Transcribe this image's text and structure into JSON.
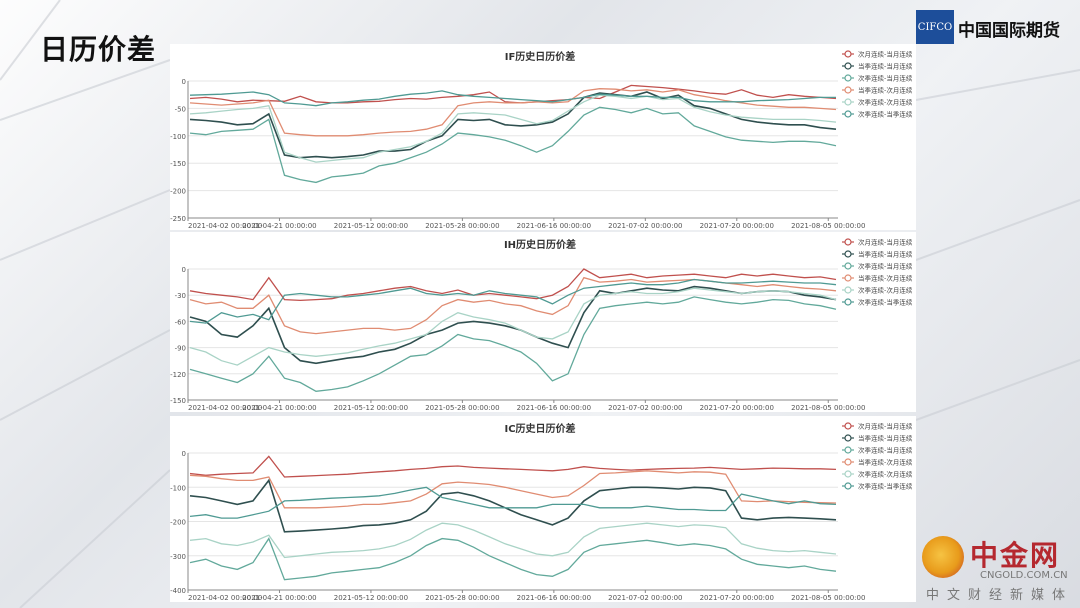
{
  "page": {
    "title": "日历价差"
  },
  "logo": {
    "mark": "CIFCO",
    "name": "中国国际期货"
  },
  "watermark": {
    "main": "中金网",
    "domain": "CNGOLD.COM.CN",
    "sub": "中文财经新媒体"
  },
  "colors": {
    "s1": "#c0504d",
    "s2": "#2f4f4f",
    "s3": "#62a99b",
    "s4": "#e08c72",
    "s5": "#a9d3c6",
    "s6": "#4f9a93"
  },
  "chart_data": [
    {
      "type": "line",
      "title": "IF历史日历价差",
      "ylim": [
        -250,
        0
      ],
      "yticks": [
        0,
        -50,
        -100,
        -150,
        -200,
        -250
      ],
      "xticks": [
        "2021-04-02 00:00:00",
        "2021-04-21 00:00:00",
        "2021-05-12 00:00:00",
        "2021-05-28 00:00:00",
        "2021-06-16 00:00:00",
        "2021-07-02 00:00:00",
        "2021-07-20 00:00:00",
        "2021-08-05 00:00:00"
      ],
      "legend": "top-right",
      "series": [
        {
          "name": "次月连续-当月连续",
          "values": [
            -32,
            -30,
            -33,
            -38,
            -35,
            -36,
            -37,
            -28,
            -38,
            -40,
            -40,
            -38,
            -37,
            -34,
            -32,
            -33,
            -30,
            -28,
            -25,
            -20,
            -38,
            -40,
            -38,
            -36,
            -34,
            -30,
            -32,
            -20,
            -8,
            -10,
            -12,
            -15,
            -18,
            -22,
            -24,
            -16,
            -26,
            -30,
            -25,
            -28,
            -30,
            -32
          ]
        },
        {
          "name": "当季连续-当月连续",
          "values": [
            -70,
            -72,
            -75,
            -80,
            -78,
            -60,
            -135,
            -140,
            -138,
            -140,
            -138,
            -135,
            -128,
            -128,
            -125,
            -110,
            -100,
            -70,
            -72,
            -70,
            -80,
            -82,
            -80,
            -75,
            -60,
            -30,
            -22,
            -25,
            -28,
            -20,
            -32,
            -26,
            -45,
            -50,
            -60,
            -70,
            -75,
            -78,
            -80,
            -80,
            -85,
            -88
          ]
        },
        {
          "name": "次季连续-当月连续",
          "values": [
            -95,
            -98,
            -92,
            -90,
            -88,
            -70,
            -172,
            -180,
            -185,
            -175,
            -172,
            -168,
            -155,
            -150,
            -140,
            -130,
            -115,
            -95,
            -98,
            -102,
            -108,
            -118,
            -130,
            -118,
            -92,
            -62,
            -48,
            -52,
            -58,
            -50,
            -60,
            -58,
            -82,
            -92,
            -102,
            -108,
            -110,
            -112,
            -110,
            -110,
            -112,
            -118
          ]
        },
        {
          "name": "当季连续-次月连续",
          "values": [
            -40,
            -42,
            -44,
            -42,
            -40,
            -35,
            -95,
            -98,
            -100,
            -100,
            -100,
            -98,
            -95,
            -93,
            -92,
            -88,
            -80,
            -45,
            -40,
            -38,
            -40,
            -40,
            -38,
            -40,
            -38,
            -18,
            -14,
            -15,
            -18,
            -16,
            -20,
            -16,
            -25,
            -30,
            -36,
            -40,
            -44,
            -46,
            -48,
            -48,
            -50,
            -52
          ]
        },
        {
          "name": "次季连续-次月连续",
          "values": [
            -60,
            -58,
            -55,
            -52,
            -50,
            -45,
            -130,
            -140,
            -148,
            -145,
            -142,
            -140,
            -130,
            -125,
            -120,
            -110,
            -95,
            -60,
            -58,
            -60,
            -62,
            -70,
            -78,
            -72,
            -55,
            -38,
            -26,
            -28,
            -32,
            -28,
            -34,
            -32,
            -48,
            -56,
            -62,
            -66,
            -68,
            -70,
            -70,
            -70,
            -72,
            -75
          ]
        },
        {
          "name": "次季连续-当季连续",
          "values": [
            -26,
            -25,
            -24,
            -22,
            -20,
            -25,
            -40,
            -42,
            -45,
            -40,
            -38,
            -35,
            -33,
            -28,
            -24,
            -22,
            -18,
            -25,
            -28,
            -30,
            -32,
            -34,
            -36,
            -38,
            -34,
            -30,
            -24,
            -26,
            -28,
            -28,
            -30,
            -30,
            -36,
            -38,
            -38,
            -38,
            -36,
            -35,
            -34,
            -32,
            -30,
            -30
          ]
        }
      ]
    },
    {
      "type": "line",
      "title": "IH历史日历价差",
      "ylim": [
        -150,
        0
      ],
      "yticks": [
        0,
        -30,
        -60,
        -90,
        -120,
        -150
      ],
      "xticks": [
        "2021-04-02 00:00:00",
        "2021-04-21 00:00:00",
        "2021-05-12 00:00:00",
        "2021-05-28 00:00:00",
        "2021-06-16 00:00:00",
        "2021-07-02 00:00:00",
        "2021-07-20 00:00:00",
        "2021-08-05 00:00:00"
      ],
      "legend": "top-right",
      "series": [
        {
          "name": "次月连续-当月连续",
          "values": [
            -25,
            -28,
            -30,
            -32,
            -35,
            -10,
            -35,
            -36,
            -35,
            -34,
            -30,
            -28,
            -25,
            -22,
            -20,
            -25,
            -28,
            -24,
            -30,
            -28,
            -30,
            -32,
            -34,
            -30,
            -20,
            0,
            -10,
            -8,
            -6,
            -10,
            -8,
            -7,
            -6,
            -8,
            -10,
            -6,
            -8,
            -6,
            -8,
            -10,
            -9,
            -12
          ]
        },
        {
          "name": "当季连续-当月连续",
          "values": [
            -55,
            -60,
            -75,
            -78,
            -65,
            -45,
            -90,
            -105,
            -108,
            -105,
            -102,
            -100,
            -95,
            -92,
            -85,
            -75,
            -70,
            -62,
            -60,
            -62,
            -65,
            -70,
            -78,
            -85,
            -90,
            -50,
            -25,
            -28,
            -25,
            -22,
            -24,
            -25,
            -20,
            -22,
            -25,
            -28,
            -26,
            -25,
            -26,
            -30,
            -32,
            -35
          ]
        },
        {
          "name": "次季连续-当月连续",
          "values": [
            -115,
            -120,
            -125,
            -130,
            -120,
            -100,
            -125,
            -130,
            -140,
            -138,
            -135,
            -128,
            -120,
            -110,
            -100,
            -98,
            -88,
            -75,
            -80,
            -82,
            -88,
            -95,
            -108,
            -128,
            -120,
            -75,
            -45,
            -42,
            -40,
            -38,
            -40,
            -38,
            -32,
            -35,
            -38,
            -40,
            -38,
            -35,
            -36,
            -40,
            -42,
            -46
          ]
        },
        {
          "name": "当季连续-次月连续",
          "values": [
            -35,
            -40,
            -38,
            -45,
            -45,
            -30,
            -65,
            -72,
            -74,
            -72,
            -70,
            -68,
            -68,
            -70,
            -68,
            -58,
            -42,
            -35,
            -38,
            -36,
            -40,
            -42,
            -48,
            -52,
            -42,
            -10,
            -15,
            -14,
            -12,
            -15,
            -14,
            -13,
            -12,
            -14,
            -16,
            -18,
            -20,
            -18,
            -20,
            -22,
            -23,
            -25
          ]
        },
        {
          "name": "次季连续-次月连续",
          "values": [
            -90,
            -95,
            -105,
            -110,
            -100,
            -90,
            -95,
            -98,
            -100,
            -98,
            -96,
            -92,
            -88,
            -85,
            -80,
            -75,
            -60,
            -50,
            -55,
            -58,
            -62,
            -70,
            -78,
            -80,
            -72,
            -40,
            -30,
            -28,
            -26,
            -28,
            -28,
            -26,
            -22,
            -24,
            -26,
            -28,
            -26,
            -25,
            -26,
            -28,
            -30,
            -35
          ]
        },
        {
          "name": "次季连续-当季连续",
          "values": [
            -60,
            -62,
            -50,
            -55,
            -52,
            -58,
            -30,
            -28,
            -30,
            -32,
            -32,
            -30,
            -28,
            -25,
            -22,
            -28,
            -30,
            -28,
            -30,
            -25,
            -28,
            -30,
            -32,
            -40,
            -30,
            -22,
            -20,
            -18,
            -16,
            -18,
            -18,
            -16,
            -12,
            -14,
            -16,
            -16,
            -15,
            -14,
            -15,
            -16,
            -16,
            -18
          ]
        }
      ]
    },
    {
      "type": "line",
      "title": "IC历史日历价差",
      "ylim": [
        -400,
        0
      ],
      "yticks": [
        0,
        -100,
        -200,
        -300,
        -400
      ],
      "xticks": [
        "2021-04-02 00:00:00",
        "2021-04-21 00:00:00",
        "2021-05-12 00:00:00",
        "2021-05-28 00:00:00",
        "2021-06-16 00:00:00",
        "2021-07-02 00:00:00",
        "2021-07-20 00:00:00",
        "2021-08-05 00:00:00"
      ],
      "legend": "top-right",
      "series": [
        {
          "name": "次月连续-当月连续",
          "values": [
            -60,
            -65,
            -62,
            -60,
            -58,
            -10,
            -70,
            -68,
            -66,
            -64,
            -62,
            -58,
            -55,
            -52,
            -48,
            -45,
            -40,
            -38,
            -42,
            -44,
            -46,
            -48,
            -50,
            -52,
            -48,
            -40,
            -45,
            -48,
            -50,
            -48,
            -46,
            -45,
            -44,
            -42,
            -45,
            -48,
            -46,
            -44,
            -45,
            -46,
            -46,
            -48
          ]
        },
        {
          "name": "当季连续-当月连续",
          "values": [
            -125,
            -130,
            -140,
            -150,
            -140,
            -80,
            -230,
            -228,
            -225,
            -222,
            -218,
            -212,
            -210,
            -205,
            -195,
            -170,
            -120,
            -115,
            -125,
            -140,
            -160,
            -180,
            -195,
            -210,
            -190,
            -140,
            -110,
            -105,
            -100,
            -100,
            -102,
            -105,
            -100,
            -102,
            -110,
            -190,
            -195,
            -190,
            -188,
            -190,
            -192,
            -195
          ]
        },
        {
          "name": "次季连续-当月连续",
          "values": [
            -320,
            -310,
            -330,
            -340,
            -320,
            -250,
            -370,
            -365,
            -360,
            -350,
            -345,
            -340,
            -335,
            -320,
            -300,
            -270,
            -250,
            -255,
            -275,
            -300,
            -320,
            -340,
            -355,
            -360,
            -340,
            -290,
            -270,
            -265,
            -260,
            -255,
            -262,
            -270,
            -265,
            -270,
            -280,
            -310,
            -325,
            -330,
            -335,
            -330,
            -340,
            -345
          ]
        },
        {
          "name": "当季连续-次月连续",
          "values": [
            -65,
            -68,
            -75,
            -80,
            -80,
            -70,
            -160,
            -160,
            -160,
            -158,
            -155,
            -150,
            -150,
            -145,
            -140,
            -120,
            -90,
            -85,
            -88,
            -92,
            -100,
            -110,
            -120,
            -130,
            -125,
            -95,
            -60,
            -58,
            -55,
            -52,
            -55,
            -58,
            -55,
            -56,
            -62,
            -140,
            -142,
            -140,
            -142,
            -144,
            -145,
            -146
          ]
        },
        {
          "name": "次季连续-次月连续",
          "values": [
            -255,
            -250,
            -265,
            -270,
            -260,
            -240,
            -305,
            -300,
            -295,
            -290,
            -288,
            -285,
            -280,
            -270,
            -252,
            -225,
            -205,
            -210,
            -225,
            -245,
            -265,
            -280,
            -295,
            -300,
            -290,
            -245,
            -220,
            -215,
            -210,
            -205,
            -210,
            -215,
            -210,
            -212,
            -218,
            -265,
            -278,
            -285,
            -288,
            -285,
            -290,
            -295
          ]
        },
        {
          "name": "次季连续-当季连续",
          "values": [
            -185,
            -180,
            -190,
            -190,
            -180,
            -170,
            -140,
            -138,
            -135,
            -132,
            -130,
            -128,
            -125,
            -118,
            -108,
            -100,
            -130,
            -140,
            -150,
            -160,
            -160,
            -160,
            -160,
            -150,
            -150,
            -150,
            -160,
            -160,
            -160,
            -155,
            -160,
            -165,
            -165,
            -168,
            -168,
            -120,
            -130,
            -140,
            -148,
            -140,
            -148,
            -150
          ]
        }
      ]
    }
  ]
}
